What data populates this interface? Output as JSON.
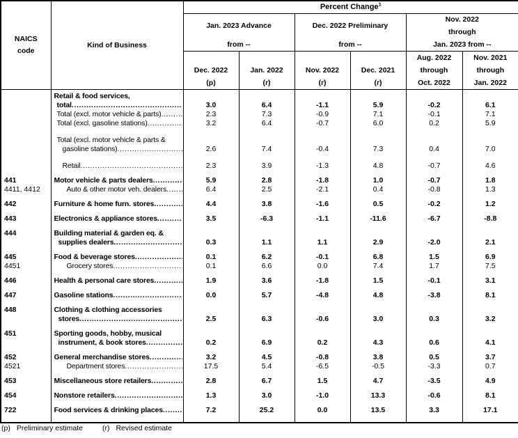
{
  "table": {
    "naics_header_lines": [
      "NAICS",
      "code"
    ],
    "kind_header": "Kind of Business",
    "percent_change_label": "Percent Change",
    "percent_change_superscript": "1",
    "column_groups": [
      {
        "lines": [
          "Jan. 2023 Advance",
          "from --"
        ]
      },
      {
        "lines": [
          "Dec. 2022 Preliminary",
          "from --"
        ]
      },
      {
        "lines": [
          "Nov. 2022",
          "through",
          "Jan. 2023 from --"
        ]
      }
    ],
    "columns": [
      {
        "lines": [
          "Dec. 2022",
          "(p)"
        ]
      },
      {
        "lines": [
          "Jan. 2022",
          "(r)"
        ]
      },
      {
        "lines": [
          "Nov. 2022",
          "(r)"
        ]
      },
      {
        "lines": [
          "Dec. 2021",
          "(r)"
        ]
      },
      {
        "lines": [
          "Aug. 2022",
          "through",
          "Oct. 2022"
        ]
      },
      {
        "lines": [
          "Nov. 2021",
          "through",
          "Jan. 2022"
        ]
      }
    ],
    "rows": [
      {
        "code": "",
        "bold": true,
        "gap": 3,
        "label_lines": [
          {
            "text": "Retail & food services,",
            "indent": 4,
            "leader": false
          },
          {
            "text": "total",
            "indent": 8,
            "leader": true
          }
        ],
        "values": [
          "3.0",
          "6.4",
          "-1.1",
          "5.9",
          "-0.2",
          "6.1"
        ]
      },
      {
        "code": "",
        "bold": false,
        "gap": 0,
        "label_lines": [
          {
            "text": "Total (excl. motor vehicle & parts)",
            "indent": 8,
            "leader": true
          }
        ],
        "values": [
          "2.3",
          "7.3",
          "-0.9",
          "7.1",
          "-0.1",
          "7.1"
        ]
      },
      {
        "code": "",
        "bold": false,
        "gap": 0,
        "label_lines": [
          {
            "text": "Total (excl. gasoline stations)",
            "indent": 8,
            "leader": true
          }
        ],
        "values": [
          "3.2",
          "6.4",
          "-0.7",
          "6.0",
          "0.2",
          "5.9"
        ]
      },
      {
        "code": "",
        "bold": false,
        "gap": 11,
        "label_lines": [
          {
            "text": "Total (excl. motor vehicle & parts &",
            "indent": 8,
            "leader": false
          },
          {
            "text": "gasoline stations)",
            "indent": 16,
            "leader": true
          }
        ],
        "values": [
          "2.6",
          "7.4",
          "-0.4",
          "7.3",
          "0.4",
          "7.0"
        ]
      },
      {
        "code": "",
        "bold": false,
        "gap": 11,
        "label_lines": [
          {
            "text": "Retail",
            "indent": 16,
            "leader": true
          }
        ],
        "values": [
          "2.3",
          "3.9",
          "-1.3",
          "4.8",
          "-0.7",
          "4.6"
        ]
      },
      {
        "code": "441",
        "bold": true,
        "gap": 8,
        "label_lines": [
          {
            "text": "Motor vehicle & parts dealers",
            "indent": 4,
            "leader": true
          }
        ],
        "values": [
          "5.9",
          "2.8",
          "-1.8",
          "1.0",
          "-0.7",
          "1.8"
        ]
      },
      {
        "code": "4411, 4412",
        "bold": false,
        "gap": 0,
        "label_lines": [
          {
            "text": "Auto & other motor veh. dealers",
            "indent": 22,
            "leader": true
          }
        ],
        "values": [
          "6.4",
          "2.5",
          "-2.1",
          "0.4",
          "-0.8",
          "1.3"
        ]
      },
      {
        "code": "442",
        "bold": true,
        "gap": 8,
        "label_lines": [
          {
            "text": "Furniture & home furn. stores",
            "indent": 4,
            "leader": true
          }
        ],
        "values": [
          "4.4",
          "3.8",
          "-1.6",
          "0.5",
          "-0.2",
          "1.2"
        ]
      },
      {
        "code": "443",
        "bold": true,
        "gap": 8,
        "label_lines": [
          {
            "text": "Electronics & appliance stores",
            "indent": 4,
            "leader": true
          }
        ],
        "values": [
          "3.5",
          "-6.3",
          "-1.1",
          "-11.6",
          "-6.7",
          "-8.8"
        ]
      },
      {
        "code": "444",
        "bold": true,
        "gap": 8,
        "label_lines": [
          {
            "text": "Building material & garden eq. &",
            "indent": 4,
            "leader": false
          },
          {
            "text": "supplies dealers",
            "indent": 10,
            "leader": true
          }
        ],
        "values": [
          "0.3",
          "1.1",
          "1.1",
          "2.9",
          "-2.0",
          "2.1"
        ]
      },
      {
        "code": "445",
        "bold": true,
        "gap": 8,
        "label_lines": [
          {
            "text": "Food & beverage stores",
            "indent": 4,
            "leader": true
          }
        ],
        "values": [
          "0.1",
          "6.2",
          "-0.1",
          "6.8",
          "1.5",
          "6.9"
        ]
      },
      {
        "code": "4451",
        "bold": false,
        "gap": 0,
        "label_lines": [
          {
            "text": "Grocery stores",
            "indent": 22,
            "leader": true
          }
        ],
        "values": [
          "0.1",
          "6.6",
          "0.0",
          "7.4",
          "1.7",
          "7.5"
        ]
      },
      {
        "code": "446",
        "bold": true,
        "gap": 8,
        "label_lines": [
          {
            "text": "Health & personal care stores",
            "indent": 4,
            "leader": true
          }
        ],
        "values": [
          "1.9",
          "3.6",
          "-1.8",
          "1.5",
          "-0.1",
          "3.1"
        ]
      },
      {
        "code": "447",
        "bold": true,
        "gap": 8,
        "label_lines": [
          {
            "text": "Gasoline stations",
            "indent": 4,
            "leader": true
          }
        ],
        "values": [
          "0.0",
          "5.7",
          "-4.8",
          "4.8",
          "-3.8",
          "8.1"
        ]
      },
      {
        "code": "448",
        "bold": true,
        "gap": 8,
        "label_lines": [
          {
            "text": "Clothing & clothing accessories",
            "indent": 4,
            "leader": false
          },
          {
            "text": "stores",
            "indent": 10,
            "leader": true
          }
        ],
        "values": [
          "2.5",
          "6.3",
          "-0.6",
          "3.0",
          "0.3",
          "3.2"
        ]
      },
      {
        "code": "451",
        "bold": true,
        "gap": 8,
        "label_lines": [
          {
            "text": "Sporting goods, hobby, musical",
            "indent": 4,
            "leader": false
          },
          {
            "text": "instrument, & book stores",
            "indent": 10,
            "leader": true
          }
        ],
        "values": [
          "0.2",
          "6.9",
          "0.2",
          "4.3",
          "0.6",
          "4.1"
        ]
      },
      {
        "code": "452",
        "bold": true,
        "gap": 8,
        "label_lines": [
          {
            "text": "General merchandise stores",
            "indent": 4,
            "leader": true
          }
        ],
        "values": [
          "3.2",
          "4.5",
          "-0.8",
          "3.8",
          "0.5",
          "3.7"
        ]
      },
      {
        "code": "4521",
        "bold": false,
        "gap": 0,
        "label_lines": [
          {
            "text": "Department stores",
            "indent": 22,
            "leader": true
          }
        ],
        "values": [
          "17.5",
          "5.4",
          "-6.5",
          "-0.5",
          "-3.3",
          "0.7"
        ]
      },
      {
        "code": "453",
        "bold": true,
        "gap": 8,
        "label_lines": [
          {
            "text": "Miscellaneous store retailers",
            "indent": 4,
            "leader": true
          }
        ],
        "values": [
          "2.8",
          "6.7",
          "1.5",
          "4.7",
          "-3.5",
          "4.9"
        ]
      },
      {
        "code": "454",
        "bold": true,
        "gap": 8,
        "label_lines": [
          {
            "text": "Nonstore retailers",
            "indent": 4,
            "leader": true
          }
        ],
        "values": [
          "1.3",
          "3.0",
          "-1.0",
          "13.3",
          "-0.6",
          "8.1"
        ]
      },
      {
        "code": "722",
        "bold": true,
        "gap": 8,
        "label_lines": [
          {
            "text": "Food services & drinking places",
            "indent": 4,
            "leader": true
          }
        ],
        "values": [
          "7.2",
          "25.2",
          "0.0",
          "13.5",
          "3.3",
          "17.1"
        ]
      }
    ]
  },
  "footnotes": [
    {
      "key": "(p)",
      "text": "Preliminary estimate"
    },
    {
      "key": "(r)",
      "text": "Revised estimate"
    }
  ]
}
